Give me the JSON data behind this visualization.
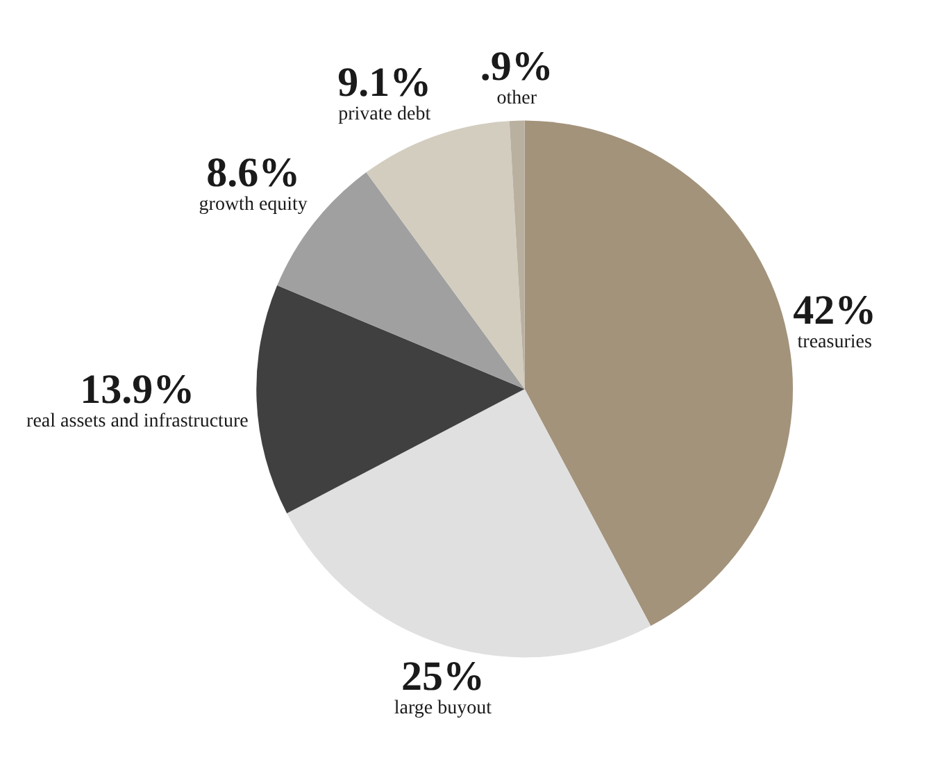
{
  "chart_data": {
    "type": "pie",
    "categories": [
      "treasuries",
      "large buyout",
      "real assets and infrastructure",
      "growth equity",
      "private debt",
      "other"
    ],
    "values": [
      42,
      25,
      13.9,
      8.6,
      9.1,
      0.9
    ],
    "value_labels": [
      "42%",
      "25%",
      "13.9%",
      "8.6%",
      "9.1%",
      ".9%"
    ],
    "colors": [
      "#a3937b",
      "#e0e0e0",
      "#404040",
      "#a0a0a0",
      "#d3cdc0",
      "#bab0a0"
    ]
  }
}
